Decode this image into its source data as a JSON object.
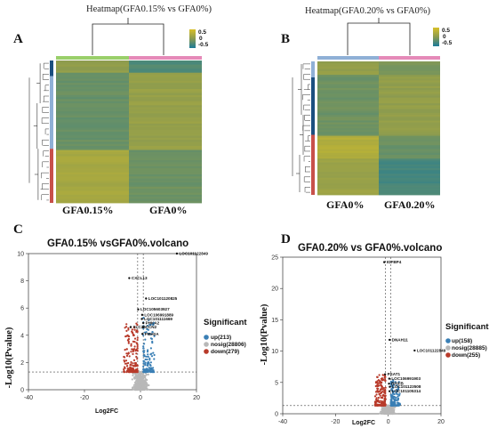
{
  "colors": {
    "low": "#1a7a9a",
    "mid": "#8a9a50",
    "high": "#d8c028",
    "up": "#3a7fb5",
    "nosig": "#b8b8b8",
    "down": "#b83a2a",
    "groupGreen": "#9acf6a",
    "groupPink": "#e58ab8",
    "groupBlue": "#8fb0d6"
  },
  "chart_data": [
    {
      "type": "heatmap",
      "panel": "A",
      "title": "Heatmap(GFA0.15% vs GFA0%)",
      "colorbar_ticks": [
        "0.5",
        "0",
        "-0.5"
      ],
      "groups": [
        "GFA0.15%",
        "GFA0%"
      ]
    },
    {
      "type": "heatmap",
      "panel": "B",
      "title": "Heatmap(GFA0.20% vs GFA0%)",
      "colorbar_ticks": [
        "0.5",
        "0",
        "-0.5"
      ],
      "groups": [
        "GFA0%",
        "GFA0.20%"
      ]
    },
    {
      "type": "scatter",
      "panel": "C",
      "title": "GFA0.15% vsGFA0%.volcano",
      "xlabel": "Log2FC",
      "ylabel": "-Log10(Pvalue)",
      "xlim": [
        -40,
        20
      ],
      "ylim": [
        0,
        10
      ],
      "xticks": [
        "-40",
        "-20",
        "0",
        "20"
      ],
      "yticks": [
        "0",
        "2",
        "4",
        "6",
        "8",
        "10"
      ],
      "legend_title": "Significant",
      "legend": [
        {
          "label": "up(213)",
          "key": "up"
        },
        {
          "label": "nosig(28806)",
          "key": "nosig"
        },
        {
          "label": "down(279)",
          "key": "down"
        }
      ],
      "labeled_genes": [
        {
          "name": "LOC101122849",
          "x": 13,
          "y": 10.0
        },
        {
          "name": "CXCL13",
          "x": -4,
          "y": 8.2
        },
        {
          "name": "LOC101120825",
          "x": 2,
          "y": 6.7
        },
        {
          "name": "LOC105603927",
          "x": -0.8,
          "y": 5.9
        },
        {
          "name": "LOC106991889",
          "x": 0.6,
          "y": 5.5
        },
        {
          "name": "LOC101111669",
          "x": 0.5,
          "y": 5.2
        },
        {
          "name": "PHKA2",
          "x": 1.0,
          "y": 4.9
        },
        {
          "name": "SLC26",
          "x": -3.5,
          "y": 4.6
        },
        {
          "name": "CCN2",
          "x": 1.0,
          "y": 4.6
        },
        {
          "name": "FMH2A",
          "x": 0.7,
          "y": 4.1
        }
      ]
    },
    {
      "type": "scatter",
      "panel": "D",
      "title": "GFA0.20% vs GFA0%.volcano",
      "xlabel": "Log2FC",
      "ylabel": "-Log10(Pvalue)",
      "xlim": [
        -40,
        20
      ],
      "ylim": [
        0,
        25
      ],
      "xticks": [
        "-40",
        "-20",
        "0",
        "20"
      ],
      "yticks": [
        "0",
        "5",
        "10",
        "15",
        "20",
        "25"
      ],
      "legend_title": "Significant",
      "legend": [
        {
          "label": "up(158)",
          "key": "up"
        },
        {
          "label": "nosig(28885)",
          "key": "nosig"
        },
        {
          "label": "down(255)",
          "key": "down"
        }
      ],
      "labeled_genes": [
        {
          "name": "IGFBP4",
          "x": -1.5,
          "y": 24.2
        },
        {
          "name": "DNAH11",
          "x": 0.5,
          "y": 11.8
        },
        {
          "name": "LOC101122849",
          "x": 10,
          "y": 10.1
        },
        {
          "name": "PSAT1",
          "x": -1.2,
          "y": 6.3
        },
        {
          "name": "LOC106991903",
          "x": 0.4,
          "y": 5.6
        },
        {
          "name": "BPIFB",
          "x": 0.3,
          "y": 4.8
        },
        {
          "name": "LOC101123508",
          "x": 0.6,
          "y": 4.3
        },
        {
          "name": "LOC101105314",
          "x": 0.5,
          "y": 3.6
        }
      ]
    }
  ]
}
